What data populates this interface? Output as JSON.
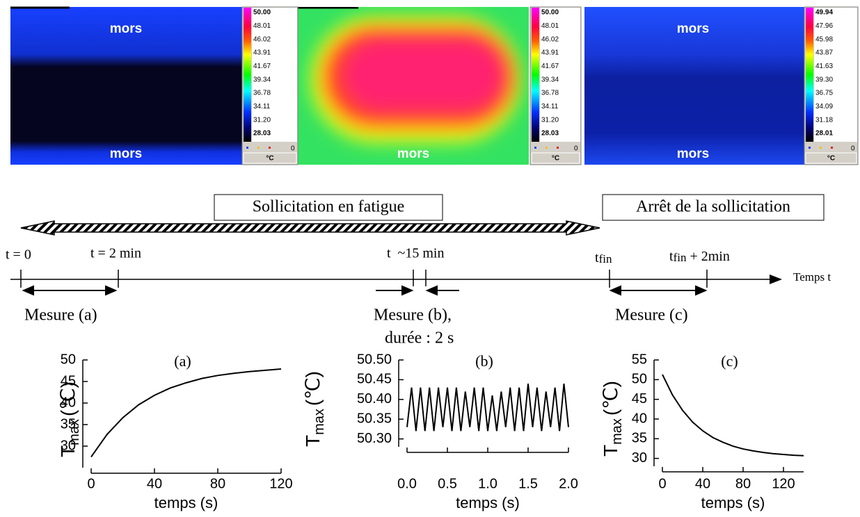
{
  "thermal_images": [
    {
      "label_top": "mors",
      "label_bottom": "mors",
      "scale": [
        "50.00",
        "48.01",
        "46.02",
        "43.91",
        "41.67",
        "39.34",
        "36.78",
        "34.11",
        "31.20",
        "28.03"
      ],
      "legend_zero": "0",
      "unit": "°C"
    },
    {
      "label_bottom": "mors",
      "scale": [
        "50.00",
        "48.01",
        "46.02",
        "43.91",
        "41.67",
        "39.34",
        "36.78",
        "34.11",
        "31.20",
        "28.03"
      ],
      "legend_zero": "0",
      "unit": "°C"
    },
    {
      "label_top": "mors",
      "label_bottom": "mors",
      "scale": [
        "49.94",
        "47.96",
        "45.98",
        "43.87",
        "41.63",
        "39.30",
        "36.75",
        "34.09",
        "31.18",
        "28.01"
      ],
      "legend_zero": "0",
      "unit": "°C"
    }
  ],
  "timeline": {
    "phase_loading": "Sollicitation en fatigue",
    "phase_stop": "Arrêt de la sollicitation",
    "axis_label": "Temps t",
    "t0": "t = 0",
    "t2": "t = 2 min",
    "t15": "t  ~15 min",
    "t_fin": {
      "t": "t",
      "sub": "fin"
    },
    "t_fin_plus": " + 2min",
    "measure_a": "Mesure (a)",
    "measure_b": "Mesure (b),",
    "measure_b_duration": "durée : 2 s",
    "measure_c": "Mesure (c)"
  },
  "chart_data": [
    {
      "type": "line",
      "title": "(a)",
      "xlabel": "temps (s)",
      "ylabel": "T",
      "ylabel_sub": "max",
      "ylabel_unit": "(℃)",
      "color": "#000000",
      "x": [
        0,
        10,
        20,
        30,
        40,
        50,
        60,
        70,
        80,
        90,
        100,
        110,
        120
      ],
      "values": [
        27.5,
        32.7,
        36.6,
        39.6,
        41.8,
        43.5,
        44.7,
        45.7,
        46.4,
        46.9,
        47.3,
        47.6,
        47.9
      ],
      "xlim": [
        0,
        120
      ],
      "xticks": [
        0,
        40,
        80,
        120
      ],
      "ylim": [
        25,
        50
      ],
      "yticks": [
        30,
        35,
        40,
        45,
        50
      ]
    },
    {
      "type": "line",
      "title": "(b)",
      "xlabel": "temps (s)",
      "ylabel": "T",
      "ylabel_sub": "max",
      "ylabel_unit": "(℃)",
      "color": "#000000",
      "x": [
        0,
        0.056,
        0.111,
        0.167,
        0.222,
        0.278,
        0.333,
        0.389,
        0.444,
        0.5,
        0.556,
        0.611,
        0.667,
        0.722,
        0.778,
        0.833,
        0.889,
        0.944,
        1.0,
        1.056,
        1.111,
        1.167,
        1.222,
        1.278,
        1.333,
        1.389,
        1.444,
        1.5,
        1.556,
        1.611,
        1.667,
        1.722,
        1.778,
        1.833,
        1.889,
        1.944,
        2.0
      ],
      "values": [
        50.33,
        50.43,
        50.32,
        50.43,
        50.32,
        50.43,
        50.32,
        50.43,
        50.33,
        50.43,
        50.32,
        50.43,
        50.32,
        50.42,
        50.33,
        50.43,
        50.32,
        50.43,
        50.32,
        50.41,
        50.32,
        50.42,
        50.33,
        50.43,
        50.32,
        50.43,
        50.32,
        50.44,
        50.33,
        50.43,
        50.32,
        50.42,
        50.33,
        50.43,
        50.32,
        50.44,
        50.33
      ],
      "xlim": [
        0,
        2
      ],
      "xticks": [
        {
          "value": 0,
          "label": "0.0"
        },
        0.5,
        {
          "value": 1,
          "label": "1.0"
        },
        1.5,
        {
          "value": 2,
          "label": "2.0"
        }
      ],
      "ylim": [
        50.28,
        50.5
      ],
      "yticks": [
        {
          "value": 50.3,
          "label": "50.30"
        },
        {
          "value": 50.35,
          "label": "50.35"
        },
        {
          "value": 50.4,
          "label": "50.40"
        },
        {
          "value": 50.45,
          "label": "50.45"
        },
        {
          "value": 50.5,
          "label": "50.50"
        }
      ]
    },
    {
      "type": "line",
      "title": "(c)",
      "xlabel": "temps (s)",
      "ylabel": "T",
      "ylabel_sub": "max",
      "ylabel_unit": "(℃)",
      "color": "#000000",
      "x": [
        0,
        10,
        20,
        30,
        40,
        50,
        60,
        70,
        80,
        90,
        100,
        110,
        120,
        130,
        140
      ],
      "values": [
        51.3,
        46.1,
        42.2,
        39.2,
        37.0,
        35.3,
        34.1,
        33.1,
        32.4,
        31.9,
        31.5,
        31.2,
        31.0,
        30.8,
        30.7
      ],
      "xlim": [
        0,
        140
      ],
      "xticks": [
        0,
        40,
        80,
        120
      ],
      "ylim": [
        28,
        55
      ],
      "yticks": [
        30,
        35,
        40,
        45,
        50,
        55
      ]
    }
  ]
}
